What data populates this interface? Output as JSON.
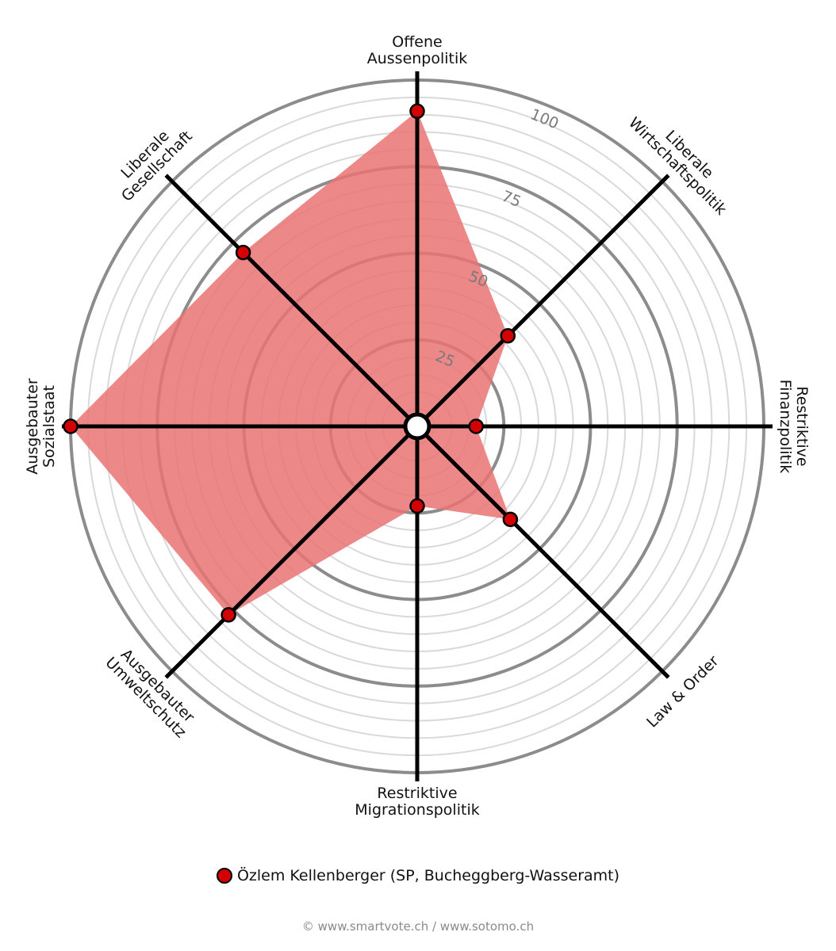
{
  "chart_data": {
    "type": "radar",
    "axes": [
      {
        "label": [
          "Offene",
          "Aussenpolitik"
        ]
      },
      {
        "label": [
          "Liberale",
          "Wirtschaftspolitik"
        ]
      },
      {
        "label": [
          "Restriktive",
          "Finanzpolitik"
        ]
      },
      {
        "label": [
          "Law & Order"
        ]
      },
      {
        "label": [
          "Restriktive",
          "Migrationspolitik"
        ]
      },
      {
        "label": [
          "Ausgebauter",
          "Umweltschutz"
        ]
      },
      {
        "label": [
          "Ausgebauter",
          "Sozialstaat"
        ]
      },
      {
        "label": [
          "Liberale",
          "Gesellschaft"
        ]
      }
    ],
    "rlim": [
      0,
      100
    ],
    "ticks": [
      25,
      50,
      75,
      100
    ],
    "tick_labels": [
      "25",
      "50",
      "75",
      "100"
    ],
    "minor_grid_step": 5,
    "series": [
      {
        "name": "Özlem Kellenberger (SP, Bucheggberg-Wasseramt)",
        "color": "#d40000",
        "fill_color": "#e97373",
        "values": [
          91,
          37,
          17,
          38,
          23,
          77,
          100,
          71
        ]
      }
    ]
  },
  "legend": {
    "label": "Özlem Kellenberger (SP, Bucheggberg-Wasseramt)"
  },
  "credit": "© www.smartvote.ch / www.sotomo.ch"
}
